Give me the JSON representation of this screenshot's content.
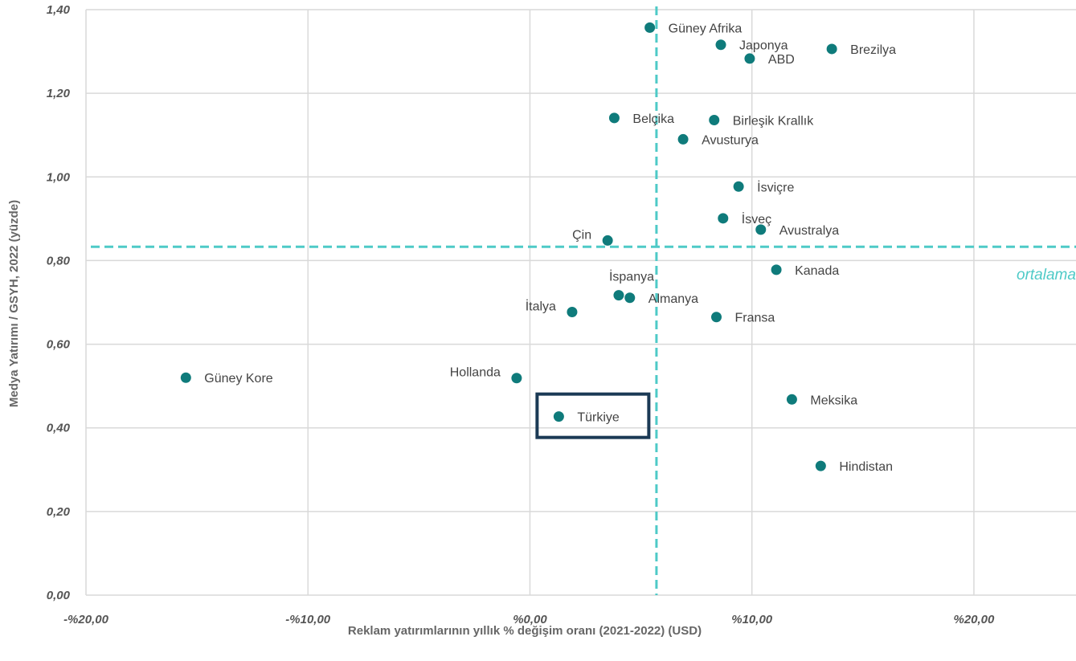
{
  "chart_data": {
    "type": "scatter",
    "xlabel": "Reklam yatırımlarının yıllık % değişim oranı (2021-2022) (USD)",
    "ylabel": "Medya Yatırımı / GSYH, 2022 (yüzde)",
    "xlim": [
      -20,
      24.6
    ],
    "ylim": [
      0,
      1.4
    ],
    "x_ticks": [
      -20,
      -10,
      0,
      10,
      20
    ],
    "x_tick_labels": [
      "-%20,00",
      "-%10,00",
      "%0,00",
      "%10,00",
      "%20,00"
    ],
    "y_ticks": [
      0,
      0.2,
      0.4,
      0.6,
      0.8,
      1.0,
      1.2,
      1.4
    ],
    "y_tick_labels": [
      "0,00",
      "0,20",
      "0,40",
      "0,60",
      "0,80",
      "1,00",
      "1,20",
      "1,40"
    ],
    "grid": true,
    "average_x": 5.7,
    "average_y": 0.833,
    "average_label": "ortalama",
    "highlight": "Türkiye",
    "points": [
      {
        "label": "Güney Afrika",
        "x": 5.4,
        "y": 1.357,
        "pos": "right"
      },
      {
        "label": "Japonya",
        "x": 8.6,
        "y": 1.316,
        "pos": "right"
      },
      {
        "label": "Brezilya",
        "x": 13.6,
        "y": 1.306,
        "pos": "right"
      },
      {
        "label": "ABD",
        "x": 9.9,
        "y": 1.283,
        "pos": "right"
      },
      {
        "label": "Belçika",
        "x": 3.8,
        "y": 1.141,
        "pos": "right"
      },
      {
        "label": "Birleşik Krallık",
        "x": 8.3,
        "y": 1.136,
        "pos": "right"
      },
      {
        "label": "Avusturya",
        "x": 6.9,
        "y": 1.09,
        "pos": "right"
      },
      {
        "label": "İsviçre",
        "x": 9.4,
        "y": 0.977,
        "pos": "right"
      },
      {
        "label": "İsveç",
        "x": 8.7,
        "y": 0.901,
        "pos": "right"
      },
      {
        "label": "Avustralya",
        "x": 10.4,
        "y": 0.874,
        "pos": "right"
      },
      {
        "label": "Çin",
        "x": 3.5,
        "y": 0.848,
        "pos": "left"
      },
      {
        "label": "Kanada",
        "x": 11.1,
        "y": 0.778,
        "pos": "right"
      },
      {
        "label": "İspanya",
        "x": 4.0,
        "y": 0.717,
        "pos": "above"
      },
      {
        "label": "Almanya",
        "x": 4.5,
        "y": 0.711,
        "pos": "right"
      },
      {
        "label": "İtalya",
        "x": 1.9,
        "y": 0.677,
        "pos": "left"
      },
      {
        "label": "Fransa",
        "x": 8.4,
        "y": 0.665,
        "pos": "right"
      },
      {
        "label": "Güney Kore",
        "x": -15.5,
        "y": 0.52,
        "pos": "right"
      },
      {
        "label": "Hollanda",
        "x": -0.6,
        "y": 0.519,
        "pos": "left"
      },
      {
        "label": "Meksika",
        "x": 11.8,
        "y": 0.468,
        "pos": "right"
      },
      {
        "label": "Türkiye",
        "x": 1.3,
        "y": 0.427,
        "pos": "right"
      },
      {
        "label": "Hindistan",
        "x": 13.1,
        "y": 0.309,
        "pos": "right"
      }
    ]
  },
  "colors": {
    "point": "#0f7b7b",
    "average_line": "#4ecac7",
    "highlight_box": "#1b3a55",
    "grid": "#d9d9d9"
  }
}
